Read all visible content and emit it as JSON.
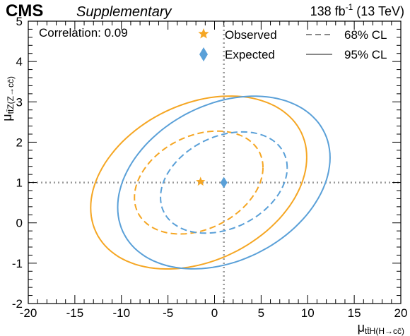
{
  "header": {
    "experiment": "CMS",
    "tag": "Supplementary",
    "lumi": "138 fb",
    "lumi_exp": "-1",
    "energy": "(13 TeV)"
  },
  "chart_data": {
    "type": "contour",
    "annotation": "Correlation: 0.09",
    "xlabel": "μ_ttH(H→cc)",
    "ylabel": "μ_ttZ(Z→cc)",
    "xlim": [
      -20,
      20
    ],
    "ylim": [
      -2,
      5
    ],
    "xticks": [
      -20,
      -15,
      -10,
      -5,
      0,
      5,
      10,
      15,
      20
    ],
    "yticks": [
      -2,
      -1,
      0,
      1,
      2,
      3,
      4,
      5
    ],
    "sm_reference": {
      "x": 1,
      "y": 1,
      "style": "dotted",
      "color": "#999999"
    },
    "points": [
      {
        "name": "Observed",
        "x": -1.5,
        "y": 1.02,
        "marker": "star",
        "color": "#f5a623"
      },
      {
        "name": "Expected",
        "x": 1.0,
        "y": 1.0,
        "marker": "diamond",
        "color": "#5aa0d8"
      }
    ],
    "contours": [
      {
        "name": "Observed 68% CL",
        "level": "68% CL",
        "style": "dashed",
        "color": "#f5a623",
        "cx": -1.7,
        "cy": 1.0,
        "rx": 6.9,
        "ry": 1.22,
        "tilt": 0.09
      },
      {
        "name": "Observed 95% CL",
        "level": "95% CL",
        "style": "solid",
        "color": "#f5a623",
        "cx": -1.7,
        "cy": 1.0,
        "rx": 11.6,
        "ry": 2.05,
        "tilt": 0.09
      },
      {
        "name": "Expected 68% CL",
        "level": "68% CL",
        "style": "dashed",
        "color": "#5aa0d8",
        "cx": 1.0,
        "cy": 1.0,
        "rx": 6.8,
        "ry": 1.2,
        "tilt": 0.09
      },
      {
        "name": "Expected 95% CL",
        "level": "95% CL",
        "style": "solid",
        "color": "#5aa0d8",
        "cx": 1.0,
        "cy": 1.0,
        "rx": 11.4,
        "ry": 2.05,
        "tilt": 0.09
      }
    ],
    "legend": {
      "placement": "top",
      "entries": [
        "Observed",
        "Expected",
        "68% CL",
        "95% CL"
      ]
    }
  }
}
